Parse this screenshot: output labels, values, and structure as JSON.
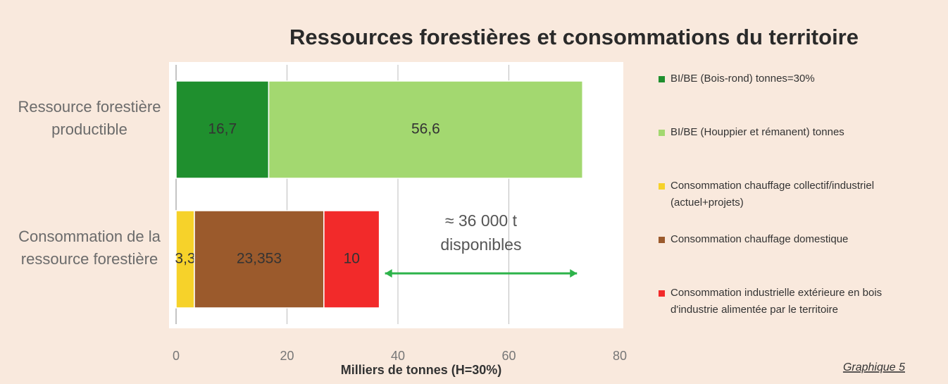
{
  "chart_data": {
    "type": "stacked_bar_horizontal",
    "title": "Ressources forestières et consommations du territoire",
    "x_label": "Milliers de tonnes (H=30%)",
    "footnote": "Graphique 5",
    "annotation": "≈ 36 000 t disponibles",
    "categories": [
      "Ressource forestière productible",
      "Consommation de la ressource forestière"
    ],
    "series": [
      {
        "name": "BI/BE (Bois-rond) tonnes=30%",
        "color": "#1f8f2e",
        "values": [
          16.7,
          null
        ],
        "value_labels": [
          "16,7",
          null
        ]
      },
      {
        "name": "BI/BE (Houppier et rémanent) tonnes",
        "color": "#a3d870",
        "values": [
          56.6,
          null
        ],
        "value_labels": [
          "56,6",
          null
        ]
      },
      {
        "name": "Consommation chauffage collectif/industriel (actuel+projets)",
        "color": "#f6d22a",
        "values": [
          null,
          3.3
        ],
        "value_labels": [
          null,
          "3,3"
        ]
      },
      {
        "name": "Consommation chauffage domestique",
        "color": "#9b5a2c",
        "values": [
          null,
          23.353
        ],
        "value_labels": [
          null,
          "23,353"
        ]
      },
      {
        "name": "Consommation industrielle extérieure en bois d'industrie alimentée par le territoire",
        "color": "#f22a2a",
        "values": [
          null,
          10
        ],
        "value_labels": [
          null,
          "10"
        ]
      }
    ],
    "xlim": [
      0,
      80
    ],
    "xticks": [
      0,
      20,
      40,
      60,
      80
    ],
    "grid": true
  }
}
